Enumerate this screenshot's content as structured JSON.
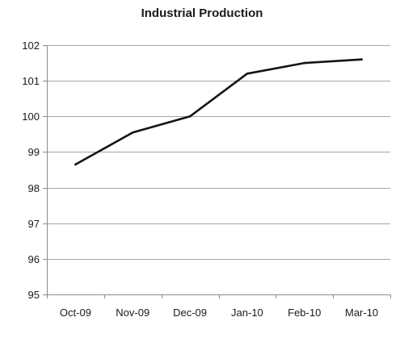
{
  "chart_data": {
    "type": "line",
    "title": "Industrial Production",
    "xlabel": "",
    "ylabel": "",
    "categories": [
      "Oct-09",
      "Nov-09",
      "Dec-09",
      "Jan-10",
      "Feb-10",
      "Mar-10"
    ],
    "series": [
      {
        "values": [
          98.65,
          99.55,
          100.0,
          101.2,
          101.5,
          101.6
        ]
      }
    ],
    "ylim": [
      95,
      102
    ],
    "yticks": [
      95,
      96,
      97,
      98,
      99,
      100,
      101,
      102
    ],
    "grid": true,
    "legend": "none",
    "colors": {
      "line": "#141414",
      "grid": "#a6a6a6",
      "axis": "#8c8c8c"
    }
  }
}
